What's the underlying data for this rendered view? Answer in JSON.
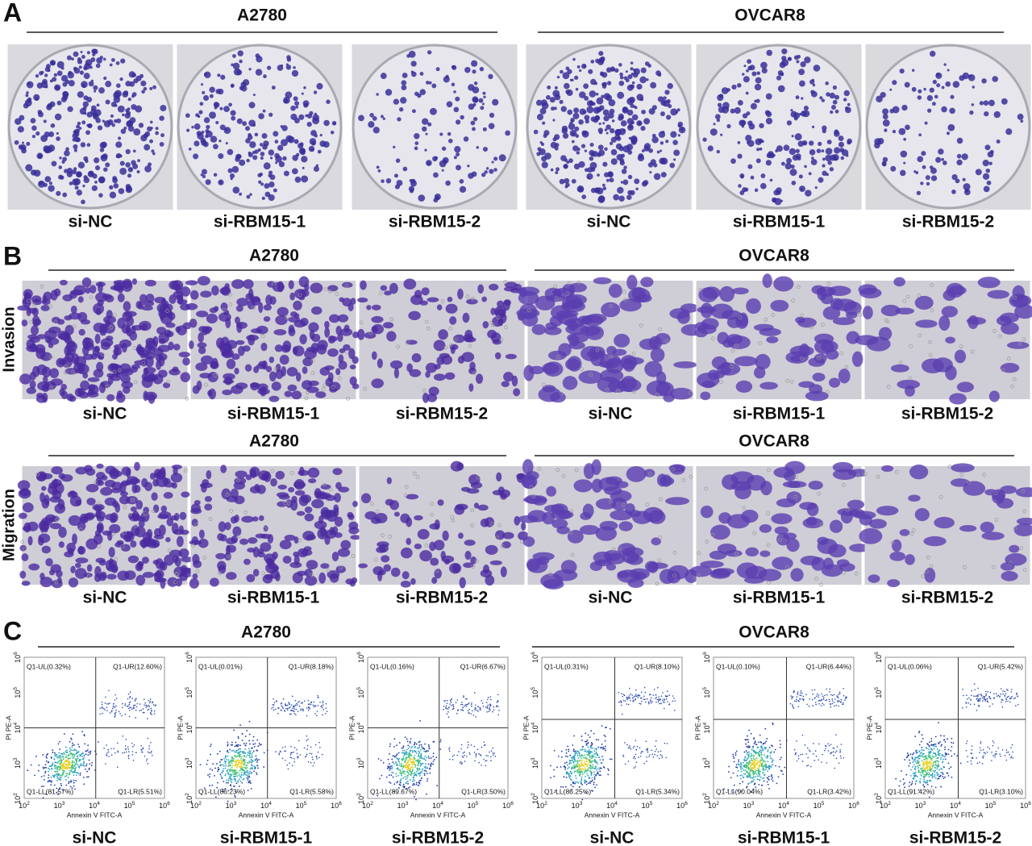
{
  "panels": [
    {
      "letter": "A",
      "groups": [
        {
          "title": "A2780",
          "labels": [
            "si-NC",
            "si-RBM15-1",
            "si-RBM15-2"
          ]
        },
        {
          "title": "OVCAR8",
          "labels": [
            "si-NC",
            "si-RBM15-1",
            "si-RBM15-2"
          ]
        }
      ]
    },
    {
      "letter": "B",
      "rows": [
        {
          "side_label": "Invasion",
          "groups": [
            {
              "title": "A2780",
              "labels": [
                "si-NC",
                "si-RBM15-1",
                "si-RBM15-2"
              ]
            },
            {
              "title": "OVCAR8",
              "labels": [
                "si-NC",
                "si-RBM15-1",
                "si-RBM15-2"
              ]
            }
          ]
        },
        {
          "side_label": "Migration",
          "groups": [
            {
              "title": "A2780",
              "labels": [
                "si-NC",
                "si-RBM15-1",
                "si-RBM15-2"
              ]
            },
            {
              "title": "OVCAR8",
              "labels": [
                "si-NC",
                "si-RBM15-1",
                "si-RBM15-2"
              ]
            }
          ]
        }
      ]
    },
    {
      "letter": "C",
      "x_axis_label": "Annexin V FITC-A",
      "y_axis_label": "PI PE-A",
      "ticks": [
        {
          "base": "10",
          "exp": "2"
        },
        {
          "base": "10",
          "exp": "3"
        },
        {
          "base": "10",
          "exp": "4"
        },
        {
          "base": "10",
          "exp": "5"
        },
        {
          "base": "10",
          "exp": "6"
        }
      ],
      "groups": [
        {
          "title": "A2780",
          "plots": [
            {
              "label": "si-NC",
              "UL": "Q1-UL(0.32%)",
              "UR": "Q1-UR(12.60%)",
              "LL": "Q1-LL(81.57%)",
              "LR": "Q1-LR(5.51%)"
            },
            {
              "label": "si-RBM15-1",
              "UL": "Q1-UL(0.01%)",
              "UR": "Q1-UR(8.18%)",
              "LL": "Q1-LL(86.23%)",
              "LR": "Q1-LR(5.58%)"
            },
            {
              "label": "si-RBM15-2",
              "UL": "Q1-UL(0.16%)",
              "UR": "Q1-UR(6.67%)",
              "LL": "Q1-LL(89.67%)",
              "LR": "Q1-LR(3.50%)"
            }
          ]
        },
        {
          "title": "OVCAR8",
          "plots": [
            {
              "label": "si-NC",
              "UL": "Q1-UL(0.31%)",
              "UR": "Q1-UR(8.10%)",
              "LL": "Q1-LL(86.25%)",
              "LR": "Q1-LR(5.34%)"
            },
            {
              "label": "si-RBM15-1",
              "UL": "Q1-UL(0.10%)",
              "UR": "Q1-UR(6.44%)",
              "LL": "Q1-LL(90.04%)",
              "LR": "Q1-LR(3.42%)"
            },
            {
              "label": "si-RBM15-2",
              "UL": "Q1-UL(0.06%)",
              "UR": "Q1-UR(5.42%)",
              "LL": "Q1-LL(91.42%)",
              "LR": "Q1-LR(3.10%)"
            }
          ]
        }
      ]
    }
  ]
}
